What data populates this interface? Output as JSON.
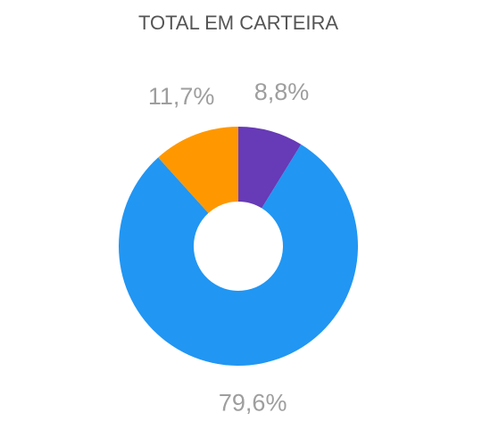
{
  "chart_data": {
    "type": "donut",
    "title": "TOTAL EM CARTEIRA",
    "categories": [
      null,
      null,
      null
    ],
    "values": [
      8.8,
      79.6,
      11.7
    ],
    "value_labels": [
      "8,8%",
      "79,6%",
      "11,7%"
    ],
    "colors": [
      "#673ab7",
      "#2196f3",
      "#ff9800"
    ]
  }
}
